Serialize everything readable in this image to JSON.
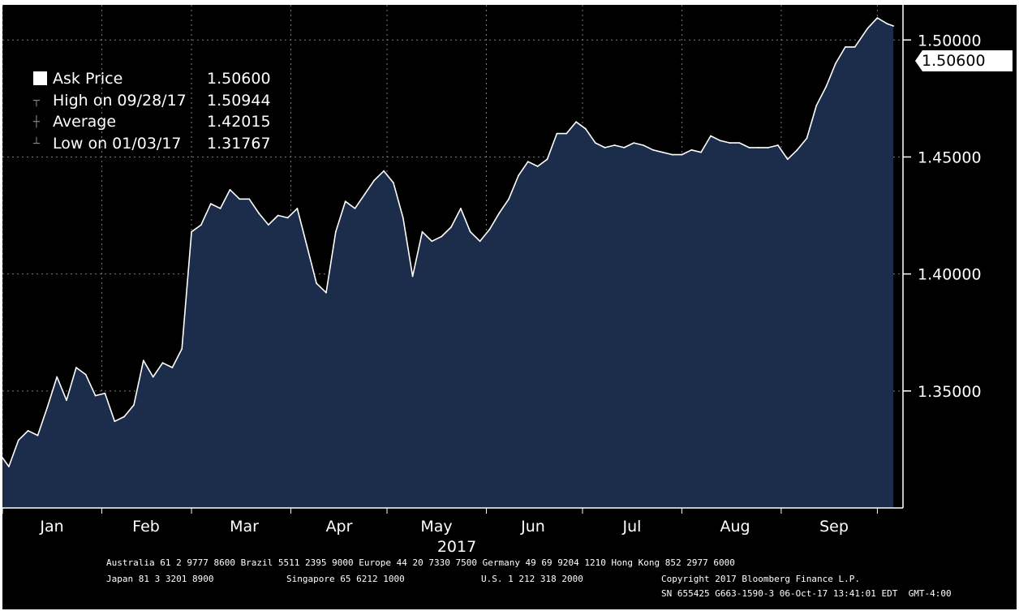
{
  "legend": [
    {
      "label": "Ask Price",
      "value": "1.50600",
      "icon": "filled-square-icon"
    },
    {
      "label": "High on 09/28/17",
      "value": "1.50944",
      "icon": "high-marker-icon"
    },
    {
      "label": "Average",
      "value": "1.42015",
      "icon": "average-marker-icon"
    },
    {
      "label": "Low on 01/03/17",
      "value": "1.31767",
      "icon": "low-marker-icon"
    }
  ],
  "last_price_tag": "1.50600",
  "footer": {
    "line1": "Australia 61 2 9777 8600 Brazil 5511 2395 9000 Europe 44 20 7330 7500 Germany 49 69 9204 1210 Hong Kong 852 2977 6000",
    "line2_left": "Japan 81 3 3201 8900",
    "line2_mid1": "Singapore 65 6212 1000",
    "line2_mid2": "U.S. 1 212 318 2000",
    "line2_right": "Copyright 2017 Bloomberg Finance L.P.",
    "line3": "SN 655425 G663-1590-3 06-Oct-17 13:41:01 EDT  GMT-4:00"
  },
  "colors": {
    "background": "#000000",
    "area_fill": "#1b2d4a",
    "line": "#ffffff",
    "grid": "#7a7a7a"
  },
  "chart_data": {
    "type": "area",
    "series": [
      {
        "name": "Ask Price"
      }
    ],
    "x_tick_labels": [
      "Jan",
      "Feb",
      "Mar",
      "Apr",
      "May",
      "Jun",
      "Jul",
      "Aug",
      "Sep"
    ],
    "year_label": "2017",
    "y_tick_labels": [
      "1.50000",
      "1.45000",
      "1.40000",
      "1.35000"
    ],
    "y_ticks": [
      1.5,
      1.45,
      1.4,
      1.35
    ],
    "ylim": [
      1.3,
      1.515
    ],
    "y_axis_position": "right",
    "grid": true,
    "legend_position": "top-left",
    "x": [
      "2017-01-01",
      "2017-01-03",
      "2017-01-06",
      "2017-01-09",
      "2017-01-12",
      "2017-01-15",
      "2017-01-18",
      "2017-01-21",
      "2017-01-24",
      "2017-01-27",
      "2017-01-30",
      "2017-02-02",
      "2017-02-05",
      "2017-02-08",
      "2017-02-11",
      "2017-02-14",
      "2017-02-17",
      "2017-02-20",
      "2017-02-23",
      "2017-02-26",
      "2017-03-01",
      "2017-03-04",
      "2017-03-07",
      "2017-03-10",
      "2017-03-13",
      "2017-03-16",
      "2017-03-19",
      "2017-03-22",
      "2017-03-25",
      "2017-03-28",
      "2017-03-31",
      "2017-04-03",
      "2017-04-06",
      "2017-04-09",
      "2017-04-12",
      "2017-04-15",
      "2017-04-18",
      "2017-04-21",
      "2017-04-24",
      "2017-04-27",
      "2017-04-30",
      "2017-05-03",
      "2017-05-06",
      "2017-05-09",
      "2017-05-12",
      "2017-05-15",
      "2017-05-18",
      "2017-05-21",
      "2017-05-24",
      "2017-05-27",
      "2017-05-30",
      "2017-06-02",
      "2017-06-05",
      "2017-06-08",
      "2017-06-11",
      "2017-06-14",
      "2017-06-17",
      "2017-06-20",
      "2017-06-23",
      "2017-06-26",
      "2017-06-29",
      "2017-07-02",
      "2017-07-05",
      "2017-07-08",
      "2017-07-11",
      "2017-07-14",
      "2017-07-17",
      "2017-07-20",
      "2017-07-23",
      "2017-07-26",
      "2017-07-29",
      "2017-08-01",
      "2017-08-04",
      "2017-08-07",
      "2017-08-10",
      "2017-08-13",
      "2017-08-16",
      "2017-08-19",
      "2017-08-22",
      "2017-08-25",
      "2017-08-28",
      "2017-08-31",
      "2017-09-03",
      "2017-09-06",
      "2017-09-09",
      "2017-09-12",
      "2017-09-15",
      "2017-09-18",
      "2017-09-21",
      "2017-09-24",
      "2017-09-28",
      "2017-10-01",
      "2017-10-04",
      "2017-10-06"
    ],
    "y": [
      1.3215,
      1.3177,
      1.329,
      1.333,
      1.331,
      1.343,
      1.356,
      1.346,
      1.36,
      1.357,
      1.348,
      1.349,
      1.337,
      1.339,
      1.344,
      1.363,
      1.356,
      1.362,
      1.36,
      1.368,
      1.418,
      1.421,
      1.43,
      1.428,
      1.436,
      1.432,
      1.432,
      1.426,
      1.421,
      1.425,
      1.424,
      1.428,
      1.412,
      1.396,
      1.392,
      1.418,
      1.431,
      1.428,
      1.434,
      1.44,
      1.444,
      1.439,
      1.424,
      1.399,
      1.418,
      1.414,
      1.416,
      1.42,
      1.428,
      1.418,
      1.414,
      1.419,
      1.426,
      1.432,
      1.442,
      1.448,
      1.446,
      1.449,
      1.46,
      1.46,
      1.465,
      1.462,
      1.456,
      1.454,
      1.455,
      1.454,
      1.456,
      1.455,
      1.453,
      1.452,
      1.451,
      1.451,
      1.453,
      1.452,
      1.459,
      1.457,
      1.456,
      1.456,
      1.454,
      1.454,
      1.454,
      1.455,
      1.449,
      1.453,
      1.458,
      1.472,
      1.48,
      1.49,
      1.497,
      1.497,
      1.505,
      1.5094,
      1.507,
      1.506
    ]
  }
}
